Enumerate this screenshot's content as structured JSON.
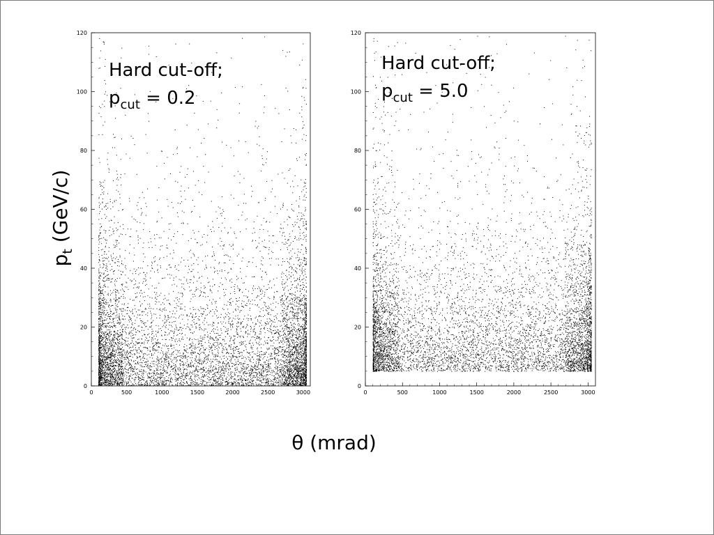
{
  "chart_data": [
    {
      "type": "scatter",
      "annotation": {
        "main": "Hard cut-off;",
        "p": "p",
        "sub": "cut",
        "rest": " = 0.2"
      },
      "xlim": [
        0,
        3100
      ],
      "ylim": [
        0,
        120
      ],
      "xticks": [
        0,
        500,
        1000,
        1500,
        2000,
        2500,
        3000
      ],
      "yticks": [
        0,
        20,
        40,
        60,
        80,
        100,
        120
      ],
      "x_range": [
        100,
        3040
      ],
      "pt_cut": 0.2,
      "n_points": 8000,
      "seed": 17
    },
    {
      "type": "scatter",
      "annotation": {
        "main": "Hard cut-off;",
        "p": "p",
        "sub": "cut",
        "rest": " = 5.0"
      },
      "xlim": [
        0,
        3100
      ],
      "ylim": [
        0,
        120
      ],
      "xticks": [
        0,
        500,
        1000,
        1500,
        2000,
        2500,
        3000
      ],
      "yticks": [
        0,
        20,
        40,
        60,
        80,
        100,
        120
      ],
      "x_range": [
        100,
        3040
      ],
      "pt_cut": 5.0,
      "n_points": 7000,
      "seed": 91
    }
  ],
  "labels": {
    "ylabel_main": "p",
    "ylabel_sub": "t",
    "ylabel_rest": " (GeV/c)",
    "xlabel": "θ (mrad)"
  },
  "colors": {
    "points": "#000000",
    "frame": "#000000",
    "background": "#ffffff"
  }
}
